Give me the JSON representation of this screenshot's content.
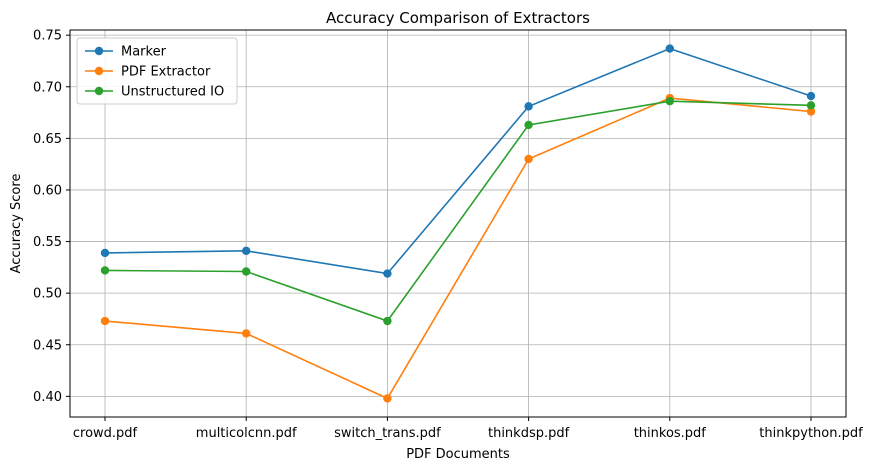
{
  "chart_data": {
    "type": "line",
    "title": "Accuracy Comparison of Extractors",
    "xlabel": "PDF Documents",
    "ylabel": "Accuracy Score",
    "categories": [
      "crowd.pdf",
      "multicolcnn.pdf",
      "switch_trans.pdf",
      "thinkdsp.pdf",
      "thinkos.pdf",
      "thinkpython.pdf"
    ],
    "ylim": [
      0.38,
      0.755
    ],
    "yticks": [
      0.4,
      0.45,
      0.5,
      0.55,
      0.6,
      0.65,
      0.7,
      0.75
    ],
    "ytick_labels": [
      "0.40",
      "0.45",
      "0.50",
      "0.55",
      "0.60",
      "0.65",
      "0.70",
      "0.75"
    ],
    "grid": true,
    "legend_position": "top-left",
    "series": [
      {
        "name": "Marker",
        "color": "#1f77b4",
        "marker": "circle",
        "values": [
          0.539,
          0.541,
          0.519,
          0.681,
          0.737,
          0.691
        ]
      },
      {
        "name": "PDF Extractor",
        "color": "#ff7f0e",
        "marker": "circle",
        "values": [
          0.473,
          0.461,
          0.398,
          0.63,
          0.689,
          0.676
        ]
      },
      {
        "name": "Unstructured IO",
        "color": "#2ca02c",
        "marker": "circle",
        "values": [
          0.522,
          0.521,
          0.473,
          0.663,
          0.686,
          0.682
        ]
      }
    ]
  }
}
